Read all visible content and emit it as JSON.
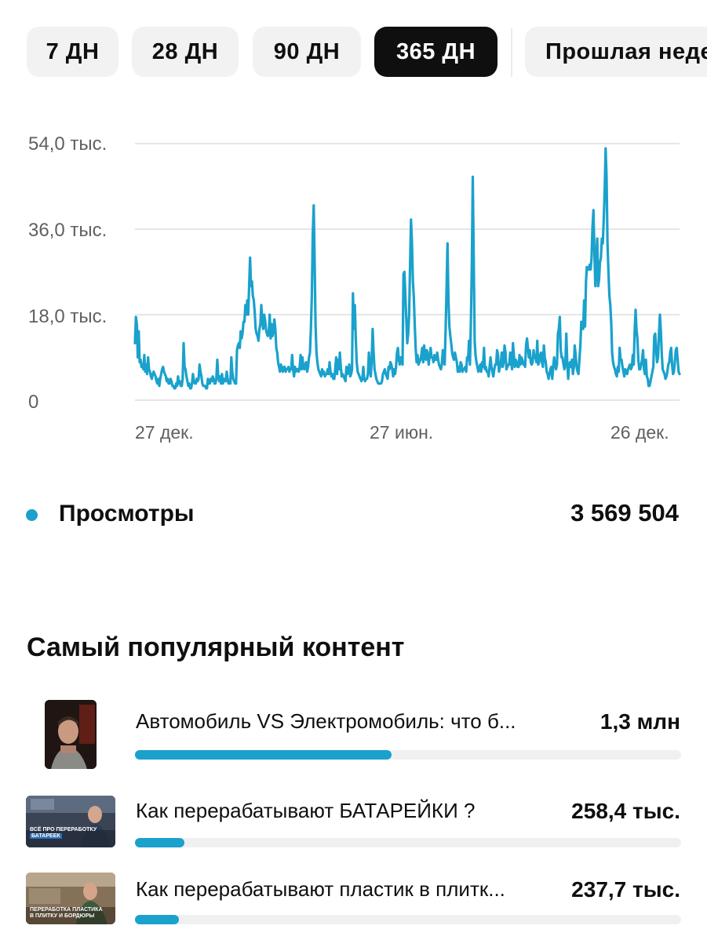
{
  "periods": {
    "items": [
      "7 ДН",
      "28 ДН",
      "90 ДН",
      "365 ДН",
      "Прошлая неделя"
    ],
    "selected": "365 ДН"
  },
  "chart_data": {
    "type": "line",
    "yticks": [
      "54,0 тыс.",
      "36,0 тыс.",
      "18,0 тыс.",
      "0"
    ],
    "ylim": [
      0,
      54000
    ],
    "xticks": [
      "27 дек.",
      "27 июн.",
      "26 дек."
    ],
    "grid": true,
    "series": [
      {
        "name": "Просмотры",
        "color": "#1aa1cc",
        "values": [
          12000,
          17500,
          16000,
          9000,
          14500,
          8000,
          8500,
          7000,
          7500,
          6500,
          9500,
          6000,
          7500,
          5500,
          9000,
          6500,
          6000,
          5000,
          4500,
          5500,
          6000,
          5500,
          5000,
          4000,
          3500,
          4500,
          3000,
          4500,
          5500,
          6500,
          7000,
          6000,
          5500,
          5000,
          4000,
          4500,
          3500,
          3500,
          4500,
          4000,
          3000,
          3000,
          2500,
          2500,
          3500,
          3000,
          5000,
          3500,
          4000,
          3000,
          3000,
          4500,
          12000,
          7000,
          6500,
          5000,
          4000,
          3000,
          3500,
          2500,
          2500,
          3500,
          5500,
          4000,
          3500,
          3500,
          4500,
          4000,
          4500,
          7500,
          6000,
          5000,
          3500,
          3000,
          3000,
          3000,
          2500,
          2500,
          4500,
          3500,
          3500,
          4500,
          4000,
          5000,
          4500,
          3500,
          3500,
          4500,
          8500,
          5000,
          4000,
          5000,
          3500,
          5500,
          3500,
          4500,
          4000,
          4000,
          6000,
          4500,
          3500,
          4000,
          3500,
          9000,
          6000,
          4500,
          4000,
          3500,
          3500,
          10500,
          11500,
          12000,
          11000,
          14500,
          13000,
          14000,
          16500,
          16500,
          20000,
          18000,
          21000,
          18000,
          24000,
          30000,
          24000,
          25000,
          22000,
          21000,
          18500,
          15000,
          14000,
          13500,
          12500,
          15000,
          16000,
          20000,
          16500,
          15000,
          18000,
          17000,
          15000,
          14000,
          13500,
          14000,
          18000,
          13000,
          16000,
          13500,
          14500,
          17000,
          15000,
          11000,
          10000,
          8000,
          7000,
          6000,
          7500,
          6500,
          6000,
          7000,
          7000,
          6000,
          6500,
          6500,
          7000,
          6000,
          6500,
          6500,
          9500,
          6500,
          5000,
          7000,
          6000,
          6500,
          6500,
          6000,
          7000,
          9500,
          6500,
          9000,
          7000,
          6500,
          7500,
          8000,
          6000,
          7000,
          9000,
          10000,
          15000,
          22000,
          35000,
          41000,
          30000,
          16000,
          10000,
          8000,
          6500,
          6000,
          5500,
          5000,
          6500,
          5500,
          6000,
          5000,
          5500,
          5500,
          6500,
          5500,
          8000,
          6000,
          5000,
          5500,
          4500,
          4500,
          6500,
          9000,
          5500,
          8500,
          6500,
          10000,
          7000,
          5000,
          5500,
          5000,
          4500,
          4000,
          7000,
          5500,
          6000,
          7500,
          5000,
          5500,
          6500,
          22500,
          15000,
          20000,
          13000,
          8000,
          6000,
          5500,
          5000,
          4500,
          4000,
          4500,
          7000,
          4500,
          4000,
          4500,
          4500,
          5500,
          10000,
          7000,
          5000,
          8500,
          15000,
          10000,
          6500,
          5500,
          4500,
          4000,
          3500,
          3500,
          3500,
          3500,
          4000,
          5500,
          6000,
          6500,
          5500,
          5000,
          4500,
          7000,
          6500,
          8000,
          7500,
          6500,
          5000,
          6500,
          5500,
          7000,
          10000,
          11000,
          8500,
          7500,
          9000,
          9000,
          7500,
          26500,
          27000,
          22000,
          17000,
          12000,
          14000,
          18000,
          28500,
          38000,
          33000,
          25000,
          22000,
          16000,
          11000,
          8000,
          9500,
          7500,
          8000,
          8500,
          9500,
          11000,
          8000,
          11500,
          9500,
          8500,
          10500,
          9500,
          7500,
          9500,
          11000,
          9000,
          9000,
          8000,
          9500,
          8500,
          8500,
          10000,
          8500,
          7500,
          7000,
          6500,
          7500,
          10500,
          8500,
          7500,
          15000,
          23500,
          33000,
          21000,
          15500,
          13500,
          12000,
          10000,
          9000,
          8500,
          10000,
          9000,
          8000,
          6000,
          7000,
          6000,
          8000,
          7500,
          6000,
          6500,
          6500,
          7000,
          6000,
          9000,
          8500,
          12500,
          7500,
          16500,
          28000,
          47000,
          30000,
          12500,
          9500,
          8000,
          7000,
          6000,
          6500,
          7500,
          6000,
          8000,
          7000,
          11000,
          6500,
          7000,
          6000,
          6000,
          5000,
          7000,
          9000,
          7000,
          6000,
          5000,
          6500,
          7500,
          7500,
          10500,
          9500,
          6000,
          7000,
          7500,
          10000,
          7000,
          8000,
          11500,
          10000,
          6500,
          7000,
          7500,
          7500,
          10000,
          8000,
          6500,
          12000,
          9500,
          7000,
          8500,
          8000,
          7000,
          7000,
          9500,
          7500,
          9000,
          8500,
          7500,
          8000,
          7000,
          11500,
          13000,
          11000,
          9000,
          10500,
          8000,
          7500,
          8000,
          10500,
          9000,
          9000,
          8000,
          12500,
          7500,
          8000,
          9500,
          10000,
          8000,
          7000,
          11500,
          9000,
          8000,
          6000,
          5500,
          4500,
          5500,
          6500,
          7000,
          4500,
          7000,
          9000,
          7500,
          6500,
          7500,
          14000,
          15000,
          17500,
          10500,
          9000,
          9000,
          7500,
          6500,
          7500,
          14000,
          8000,
          4500,
          7500,
          8000,
          7000,
          8500,
          5500,
          7000,
          11500,
          9500,
          7000,
          6000,
          5500,
          8500,
          11500,
          16500,
          16000,
          15000,
          21000,
          15500,
          25000,
          28000,
          27500,
          27500,
          28500,
          27500,
          30000,
          36500,
          40000,
          31000,
          24000,
          30000,
          34000,
          24000,
          25500,
          29000,
          30000,
          34000,
          33000,
          38000,
          44000,
          53000,
          47000,
          33000,
          27000,
          22000,
          20000,
          16000,
          10000,
          8000,
          7000,
          6500,
          5500,
          5000,
          7000,
          6000,
          11000,
          8500,
          8500,
          7000,
          6000,
          5000,
          6500,
          6000,
          5500,
          6500,
          7000,
          7500,
          6500,
          7000,
          9500,
          7500,
          14500,
          19000,
          15000,
          13000,
          8500,
          6500,
          6500,
          7500,
          8500,
          10500,
          6500,
          5500,
          8500,
          5000,
          4500,
          3000,
          3000,
          4000,
          5000,
          6000,
          7000,
          13500,
          14000,
          10500,
          8000,
          9000,
          14000,
          18000,
          14500,
          10000,
          6500,
          6000,
          5500,
          4500,
          5000,
          6000,
          7500,
          8000,
          10000,
          11000,
          7500,
          5500,
          6000,
          8000,
          10500,
          11000,
          8500,
          6000,
          5500
        ]
      }
    ]
  },
  "legend": {
    "label": "Просмотры",
    "total": "3 569 504",
    "color": "#1aa1cc"
  },
  "popular": {
    "title": "Самый популярный контент",
    "items": [
      {
        "title": "Автомобиль VS Электромобиль: что б...",
        "value": "1,3 млн",
        "fraction": 0.47
      },
      {
        "title": "Как перерабатывают БАТАРЕЙКИ ?",
        "value": "258,4 тыс.",
        "fraction": 0.09,
        "thumb_caption_1": "ВСЁ ПРО ПЕРЕРАБОТКУ",
        "thumb_caption_2": "БАТАРЕЕК"
      },
      {
        "title": "Как перерабатывают пластик в плитк...",
        "value": "237,7 тыс.",
        "fraction": 0.08,
        "thumb_caption_1": "ПЕРЕРАБОТКА ПЛАСТИКА",
        "thumb_caption_2": "В ПЛИТКУ И БОРДЮРЫ"
      }
    ]
  },
  "colors": {
    "accent": "#1aa1cc",
    "text": "#0f0f0f",
    "muted": "#606060",
    "chip_bg": "#f2f2f2"
  }
}
